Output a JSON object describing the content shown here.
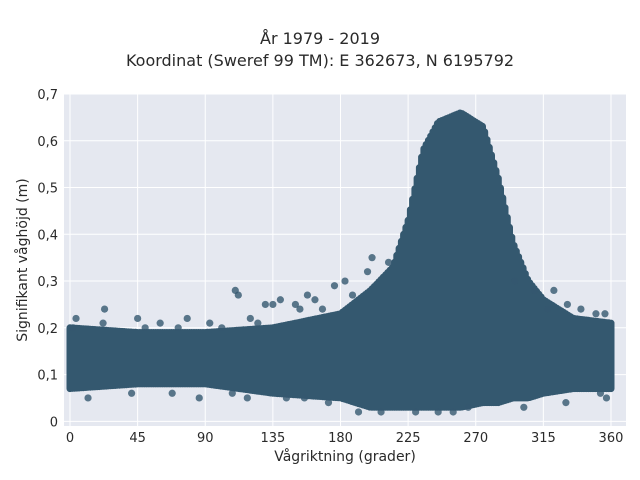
{
  "chart_data": {
    "type": "scatter",
    "title_lines": [
      "År 1979 - 2019",
      "Koordinat (Sweref 99 TM): E 362673, N 6195792"
    ],
    "xlabel": "Vågriktning (grader)",
    "ylabel": "Signifikant våghöjd (m)",
    "xlim": [
      -4,
      370
    ],
    "ylim": [
      -0.01,
      0.7
    ],
    "x_ticks": [
      0,
      45,
      90,
      135,
      180,
      225,
      270,
      315,
      360
    ],
    "x_tick_labels": [
      "0",
      "45",
      "90",
      "135",
      "180",
      "225",
      "270",
      "315",
      "360"
    ],
    "y_ticks": [
      0,
      0.1,
      0.2,
      0.3,
      0.4,
      0.5,
      0.6,
      0.7
    ],
    "y_tick_labels": [
      "0",
      "0,1",
      "0,2",
      "0,3",
      "0,4",
      "0,5",
      "0,6",
      "0,7"
    ],
    "grid": true,
    "legend": false,
    "marker_color": "#34586f",
    "plot_bg": "#e5e8f0",
    "density_envelope": [
      {
        "x": 0,
        "y_min": 0.07,
        "y_max": 0.2
      },
      {
        "x": 45,
        "y_min": 0.08,
        "y_max": 0.19
      },
      {
        "x": 90,
        "y_min": 0.08,
        "y_max": 0.19
      },
      {
        "x": 135,
        "y_min": 0.06,
        "y_max": 0.2
      },
      {
        "x": 180,
        "y_min": 0.05,
        "y_max": 0.23
      },
      {
        "x": 200,
        "y_min": 0.03,
        "y_max": 0.28
      },
      {
        "x": 215,
        "y_min": 0.03,
        "y_max": 0.33
      },
      {
        "x": 225,
        "y_min": 0.03,
        "y_max": 0.43
      },
      {
        "x": 235,
        "y_min": 0.03,
        "y_max": 0.58
      },
      {
        "x": 245,
        "y_min": 0.03,
        "y_max": 0.64
      },
      {
        "x": 260,
        "y_min": 0.03,
        "y_max": 0.66
      },
      {
        "x": 275,
        "y_min": 0.04,
        "y_max": 0.63
      },
      {
        "x": 285,
        "y_min": 0.04,
        "y_max": 0.52
      },
      {
        "x": 295,
        "y_min": 0.05,
        "y_max": 0.38
      },
      {
        "x": 305,
        "y_min": 0.05,
        "y_max": 0.3
      },
      {
        "x": 315,
        "y_min": 0.06,
        "y_max": 0.26
      },
      {
        "x": 335,
        "y_min": 0.07,
        "y_max": 0.22
      },
      {
        "x": 360,
        "y_min": 0.07,
        "y_max": 0.21
      }
    ],
    "outlier_points": [
      {
        "x": 2,
        "y": 0.2
      },
      {
        "x": 4,
        "y": 0.22
      },
      {
        "x": 12,
        "y": 0.05
      },
      {
        "x": 22,
        "y": 0.21
      },
      {
        "x": 23,
        "y": 0.24
      },
      {
        "x": 41,
        "y": 0.06
      },
      {
        "x": 45,
        "y": 0.22
      },
      {
        "x": 50,
        "y": 0.2
      },
      {
        "x": 60,
        "y": 0.21
      },
      {
        "x": 68,
        "y": 0.06
      },
      {
        "x": 72,
        "y": 0.2
      },
      {
        "x": 78,
        "y": 0.22
      },
      {
        "x": 86,
        "y": 0.05
      },
      {
        "x": 93,
        "y": 0.21
      },
      {
        "x": 101,
        "y": 0.2
      },
      {
        "x": 108,
        "y": 0.06
      },
      {
        "x": 110,
        "y": 0.28
      },
      {
        "x": 112,
        "y": 0.27
      },
      {
        "x": 118,
        "y": 0.05
      },
      {
        "x": 120,
        "y": 0.22
      },
      {
        "x": 125,
        "y": 0.21
      },
      {
        "x": 130,
        "y": 0.25
      },
      {
        "x": 135,
        "y": 0.25
      },
      {
        "x": 140,
        "y": 0.26
      },
      {
        "x": 144,
        "y": 0.05
      },
      {
        "x": 150,
        "y": 0.25
      },
      {
        "x": 153,
        "y": 0.24
      },
      {
        "x": 156,
        "y": 0.05
      },
      {
        "x": 158,
        "y": 0.27
      },
      {
        "x": 163,
        "y": 0.26
      },
      {
        "x": 168,
        "y": 0.24
      },
      {
        "x": 172,
        "y": 0.04
      },
      {
        "x": 176,
        "y": 0.29
      },
      {
        "x": 183,
        "y": 0.3
      },
      {
        "x": 188,
        "y": 0.27
      },
      {
        "x": 192,
        "y": 0.02
      },
      {
        "x": 198,
        "y": 0.32
      },
      {
        "x": 201,
        "y": 0.35
      },
      {
        "x": 207,
        "y": 0.02
      },
      {
        "x": 212,
        "y": 0.34
      },
      {
        "x": 230,
        "y": 0.02
      },
      {
        "x": 245,
        "y": 0.02
      },
      {
        "x": 255,
        "y": 0.02
      },
      {
        "x": 265,
        "y": 0.03
      },
      {
        "x": 296,
        "y": 0.3
      },
      {
        "x": 302,
        "y": 0.03
      },
      {
        "x": 309,
        "y": 0.28
      },
      {
        "x": 318,
        "y": 0.24
      },
      {
        "x": 322,
        "y": 0.28
      },
      {
        "x": 330,
        "y": 0.04
      },
      {
        "x": 331,
        "y": 0.25
      },
      {
        "x": 340,
        "y": 0.24
      },
      {
        "x": 350,
        "y": 0.23
      },
      {
        "x": 353,
        "y": 0.06
      },
      {
        "x": 356,
        "y": 0.23
      },
      {
        "x": 357,
        "y": 0.05
      }
    ]
  }
}
